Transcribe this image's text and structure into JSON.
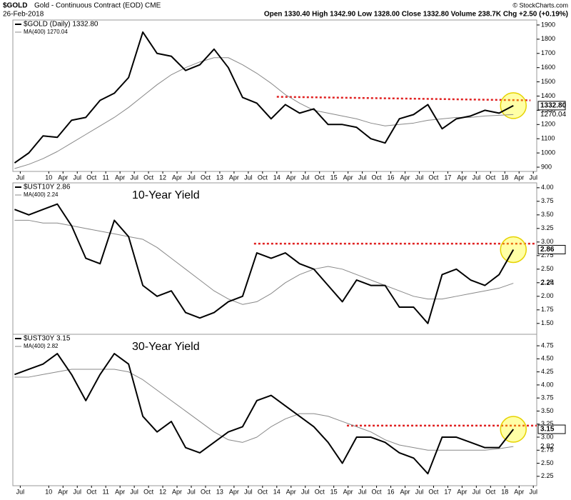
{
  "header": {
    "symbol": "$GOLD",
    "name": "Gold - Continuous Contract (EOD) CME",
    "date": "26-Feb-2018",
    "quote": "Open 1330.40   High 1342.90   Low 1328.00   Close 1332.80   Volume 238.7K   Chg +2.50 (+0.19%)",
    "watermark": "© StockCharts.com"
  },
  "chart_data": [
    {
      "type": "line",
      "x": [
        2009.4,
        2009.65,
        2009.9,
        2010.15,
        2010.4,
        2010.65,
        2010.9,
        2011.15,
        2011.4,
        2011.65,
        2011.9,
        2012.15,
        2012.4,
        2012.65,
        2012.9,
        2013.15,
        2013.4,
        2013.65,
        2013.9,
        2014.15,
        2014.4,
        2014.65,
        2014.9,
        2015.15,
        2015.4,
        2015.65,
        2015.9,
        2016.15,
        2016.4,
        2016.65,
        2016.9,
        2017.15,
        2017.4,
        2017.65,
        2017.9,
        2018.15
      ],
      "series": [
        {
          "name": "$GOLD (Daily) 1332.80",
          "color": "#000000",
          "values": [
            930,
            1000,
            1120,
            1110,
            1230,
            1250,
            1370,
            1420,
            1530,
            1850,
            1700,
            1680,
            1580,
            1620,
            1730,
            1600,
            1390,
            1350,
            1240,
            1340,
            1280,
            1310,
            1200,
            1200,
            1180,
            1100,
            1070,
            1240,
            1270,
            1340,
            1170,
            1240,
            1260,
            1300,
            1280,
            1332.8
          ],
          "value_labels": [
            null,
            null,
            null,
            null,
            null,
            null,
            null,
            null,
            null,
            null,
            null,
            null,
            null,
            null,
            null,
            null,
            null,
            null,
            null,
            null,
            null,
            null,
            null,
            null,
            null,
            null,
            null,
            null,
            null,
            null,
            null,
            null,
            null,
            null,
            null,
            "1332.80"
          ]
        },
        {
          "name": "MA(400) 1270.04",
          "color": "#888888",
          "values": [
            890,
            920,
            960,
            1010,
            1070,
            1130,
            1190,
            1250,
            1320,
            1400,
            1480,
            1550,
            1600,
            1640,
            1670,
            1670,
            1620,
            1560,
            1490,
            1410,
            1350,
            1300,
            1280,
            1260,
            1240,
            1210,
            1190,
            1200,
            1210,
            1230,
            1240,
            1250,
            1250,
            1260,
            1265,
            1270.04
          ],
          "value_labels": [
            null,
            null,
            null,
            null,
            null,
            null,
            null,
            null,
            null,
            null,
            null,
            null,
            null,
            null,
            null,
            null,
            null,
            null,
            null,
            null,
            null,
            null,
            null,
            null,
            null,
            null,
            null,
            null,
            null,
            null,
            null,
            null,
            null,
            null,
            null,
            "1270.04"
          ]
        }
      ],
      "resistance": {
        "x": [
          2014.0,
          2018.45
        ],
        "values": [
          1395,
          1370
        ],
        "color": "#e02020"
      },
      "xlim": [
        2009.37,
        2018.56
      ],
      "ylim": [
        870,
        1935
      ],
      "yticks": [
        900,
        1000,
        1100,
        1200,
        1300,
        1400,
        1500,
        1600,
        1700,
        1800,
        1900
      ],
      "xticks": [
        {
          "value": 2009.5,
          "label": "Jul"
        },
        {
          "value": 2010,
          "label": "10"
        },
        {
          "value": 2010.25,
          "label": "Apr"
        },
        {
          "value": 2010.5,
          "label": "Jul"
        },
        {
          "value": 2010.75,
          "label": "Oct"
        },
        {
          "value": 2011,
          "label": "11"
        },
        {
          "value": 2011.25,
          "label": "Apr"
        },
        {
          "value": 2011.5,
          "label": "Jul"
        },
        {
          "value": 2011.75,
          "label": "Oct"
        },
        {
          "value": 2012,
          "label": "12"
        },
        {
          "value": 2012.25,
          "label": "Apr"
        },
        {
          "value": 2012.5,
          "label": "Jul"
        },
        {
          "value": 2012.75,
          "label": "Oct"
        },
        {
          "value": 2013,
          "label": "13"
        },
        {
          "value": 2013.25,
          "label": "Apr"
        },
        {
          "value": 2013.5,
          "label": "Jul"
        },
        {
          "value": 2013.75,
          "label": "Oct"
        },
        {
          "value": 2014,
          "label": "14"
        },
        {
          "value": 2014.25,
          "label": "Apr"
        },
        {
          "value": 2014.5,
          "label": "Jul"
        },
        {
          "value": 2014.75,
          "label": "Oct"
        },
        {
          "value": 2015,
          "label": "15"
        },
        {
          "value": 2015.25,
          "label": "Apr"
        },
        {
          "value": 2015.5,
          "label": "Jul"
        },
        {
          "value": 2015.75,
          "label": "Oct"
        },
        {
          "value": 2016,
          "label": "16"
        },
        {
          "value": 2016.25,
          "label": "Apr"
        },
        {
          "value": 2016.5,
          "label": "Jul"
        },
        {
          "value": 2016.75,
          "label": "Oct"
        },
        {
          "value": 2017,
          "label": "17"
        },
        {
          "value": 2017.25,
          "label": "Apr"
        },
        {
          "value": 2017.5,
          "label": "Jul"
        },
        {
          "value": 2017.75,
          "label": "Oct"
        },
        {
          "value": 2018,
          "label": "18"
        },
        {
          "value": 2018.25,
          "label": "Apr"
        },
        {
          "value": 2018.5,
          "label": "Jul"
        }
      ]
    },
    {
      "type": "line",
      "title": "10-Year Yield",
      "x": [
        2009.4,
        2009.65,
        2009.9,
        2010.15,
        2010.4,
        2010.65,
        2010.9,
        2011.15,
        2011.4,
        2011.65,
        2011.9,
        2012.15,
        2012.4,
        2012.65,
        2012.9,
        2013.15,
        2013.4,
        2013.65,
        2013.9,
        2014.15,
        2014.4,
        2014.65,
        2014.9,
        2015.15,
        2015.4,
        2015.65,
        2015.9,
        2016.15,
        2016.4,
        2016.65,
        2016.9,
        2017.15,
        2017.4,
        2017.65,
        2017.9,
        2018.15
      ],
      "series": [
        {
          "name": "$UST10Y 2.86",
          "color": "#000000",
          "values": [
            3.6,
            3.5,
            3.6,
            3.7,
            3.3,
            2.7,
            2.6,
            3.4,
            3.1,
            2.2,
            2.0,
            2.1,
            1.7,
            1.6,
            1.7,
            1.9,
            2.0,
            2.8,
            2.7,
            2.8,
            2.6,
            2.5,
            2.2,
            1.9,
            2.3,
            2.2,
            2.2,
            1.8,
            1.8,
            1.5,
            2.4,
            2.5,
            2.3,
            2.2,
            2.4,
            2.86
          ],
          "value_labels": [
            null,
            null,
            null,
            null,
            null,
            null,
            null,
            null,
            null,
            null,
            null,
            null,
            null,
            null,
            null,
            null,
            null,
            null,
            null,
            null,
            null,
            null,
            null,
            null,
            null,
            null,
            null,
            null,
            null,
            null,
            null,
            null,
            null,
            null,
            null,
            "2.86"
          ]
        },
        {
          "name": "MA(400) 2.24",
          "color": "#888888",
          "values": [
            3.4,
            3.4,
            3.35,
            3.35,
            3.3,
            3.25,
            3.2,
            3.15,
            3.1,
            3.05,
            2.9,
            2.7,
            2.5,
            2.3,
            2.1,
            1.95,
            1.85,
            1.9,
            2.05,
            2.25,
            2.4,
            2.5,
            2.55,
            2.5,
            2.4,
            2.3,
            2.2,
            2.1,
            2.0,
            1.95,
            1.95,
            2.0,
            2.05,
            2.1,
            2.15,
            2.24
          ],
          "value_labels": [
            null,
            null,
            null,
            null,
            null,
            null,
            null,
            null,
            null,
            null,
            null,
            null,
            null,
            null,
            null,
            null,
            null,
            null,
            null,
            null,
            null,
            null,
            null,
            null,
            null,
            null,
            null,
            null,
            null,
            null,
            null,
            null,
            null,
            null,
            null,
            "2.24"
          ]
        }
      ],
      "resistance": {
        "x": [
          2013.6,
          2018.56
        ],
        "values": [
          2.97,
          2.97
        ],
        "color": "#e02020"
      },
      "xlim": [
        2009.37,
        2018.56
      ],
      "ylim": [
        1.3,
        4.09
      ],
      "yticks": [
        {
          "value": 1.5,
          "label": "1.50"
        },
        1.75,
        {
          "value": 2,
          "label": "2.00"
        },
        2.25,
        {
          "value": 2.5,
          "label": "2.50"
        },
        2.75,
        {
          "value": 3,
          "label": "3.00"
        },
        3.25,
        {
          "value": 3.5,
          "label": "3.50"
        },
        3.75,
        {
          "value": 4,
          "label": "4.00"
        }
      ]
    },
    {
      "type": "line",
      "title": "30-Year Yield",
      "x": [
        2009.4,
        2009.65,
        2009.9,
        2010.15,
        2010.4,
        2010.65,
        2010.9,
        2011.15,
        2011.4,
        2011.65,
        2011.9,
        2012.15,
        2012.4,
        2012.65,
        2012.9,
        2013.15,
        2013.4,
        2013.65,
        2013.9,
        2014.15,
        2014.4,
        2014.65,
        2014.9,
        2015.15,
        2015.4,
        2015.65,
        2015.9,
        2016.15,
        2016.4,
        2016.65,
        2016.9,
        2017.15,
        2017.4,
        2017.65,
        2017.9,
        2018.15
      ],
      "series": [
        {
          "name": "$UST30Y 3.15",
          "color": "#000000",
          "values": [
            4.2,
            4.3,
            4.4,
            4.6,
            4.2,
            3.7,
            4.2,
            4.6,
            4.4,
            3.4,
            3.1,
            3.3,
            2.8,
            2.7,
            2.9,
            3.1,
            3.2,
            3.7,
            3.8,
            3.6,
            3.4,
            3.2,
            2.9,
            2.5,
            3.0,
            3.0,
            2.9,
            2.7,
            2.6,
            2.3,
            3.0,
            3.0,
            2.9,
            2.8,
            2.8,
            3.15
          ],
          "value_labels": [
            null,
            null,
            null,
            null,
            null,
            null,
            null,
            null,
            null,
            null,
            null,
            null,
            null,
            null,
            null,
            null,
            null,
            null,
            null,
            null,
            null,
            null,
            null,
            null,
            null,
            null,
            null,
            null,
            null,
            null,
            null,
            null,
            null,
            null,
            null,
            "3.15"
          ]
        },
        {
          "name": "MA(400) 2.82",
          "color": "#888888",
          "values": [
            4.15,
            4.15,
            4.2,
            4.25,
            4.3,
            4.3,
            4.3,
            4.3,
            4.25,
            4.1,
            3.9,
            3.7,
            3.5,
            3.3,
            3.1,
            2.95,
            2.9,
            3.0,
            3.2,
            3.35,
            3.45,
            3.45,
            3.4,
            3.3,
            3.2,
            3.1,
            2.95,
            2.85,
            2.8,
            2.75,
            2.75,
            2.75,
            2.75,
            2.75,
            2.78,
            2.82
          ],
          "value_labels": [
            null,
            null,
            null,
            null,
            null,
            null,
            null,
            null,
            null,
            null,
            null,
            null,
            null,
            null,
            null,
            null,
            null,
            null,
            null,
            null,
            null,
            null,
            null,
            null,
            null,
            null,
            null,
            null,
            null,
            null,
            null,
            null,
            null,
            null,
            null,
            "2.82"
          ]
        }
      ],
      "resistance": {
        "x": [
          2015.23,
          2018.56
        ],
        "values": [
          3.22,
          3.22
        ],
        "color": "#e02020"
      },
      "xlim": [
        2009.37,
        2018.56
      ],
      "ylim": [
        2.07,
        4.97
      ],
      "yticks": [
        2.25,
        {
          "value": 2.5,
          "label": "2.50"
        },
        2.75,
        {
          "value": 3,
          "label": "3.00"
        },
        3.25,
        {
          "value": 3.5,
          "label": "3.50"
        },
        3.75,
        {
          "value": 4,
          "label": "4.00"
        },
        4.25,
        {
          "value": 4.5,
          "label": "4.50"
        },
        4.75
      ],
      "xticks": [
        {
          "value": 2009.5,
          "label": "Jul"
        },
        {
          "value": 2010,
          "label": "10"
        },
        {
          "value": 2010.25,
          "label": "Apr"
        },
        {
          "value": 2010.5,
          "label": "Jul"
        },
        {
          "value": 2010.75,
          "label": "Oct"
        },
        {
          "value": 2011,
          "label": "11"
        },
        {
          "value": 2011.25,
          "label": "Apr"
        },
        {
          "value": 2011.5,
          "label": "Jul"
        },
        {
          "value": 2011.75,
          "label": "Oct"
        },
        {
          "value": 2012,
          "label": "12"
        },
        {
          "value": 2012.25,
          "label": "Apr"
        },
        {
          "value": 2012.5,
          "label": "Jul"
        },
        {
          "value": 2012.75,
          "label": "Oct"
        },
        {
          "value": 2013,
          "label": "13"
        },
        {
          "value": 2013.25,
          "label": "Apr"
        },
        {
          "value": 2013.5,
          "label": "Jul"
        },
        {
          "value": 2013.75,
          "label": "Oct"
        },
        {
          "value": 2014,
          "label": "14"
        },
        {
          "value": 2014.25,
          "label": "Apr"
        },
        {
          "value": 2014.5,
          "label": "Jul"
        },
        {
          "value": 2014.75,
          "label": "Oct"
        },
        {
          "value": 2015,
          "label": "15"
        },
        {
          "value": 2015.25,
          "label": "Apr"
        },
        {
          "value": 2015.5,
          "label": "Jul"
        },
        {
          "value": 2015.75,
          "label": "Oct"
        },
        {
          "value": 2016,
          "label": "16"
        },
        {
          "value": 2016.25,
          "label": "Apr"
        },
        {
          "value": 2016.5,
          "label": "Jul"
        },
        {
          "value": 2016.75,
          "label": "Oct"
        },
        {
          "value": 2017,
          "label": "17"
        },
        {
          "value": 2017.25,
          "label": "Apr"
        },
        {
          "value": 2017.5,
          "label": "Jul"
        },
        {
          "value": 2017.75,
          "label": "Oct"
        },
        {
          "value": 2018,
          "label": "18"
        },
        {
          "value": 2018.25,
          "label": "Apr"
        },
        {
          "value": 2018.5,
          "label": "Jul"
        }
      ]
    }
  ]
}
